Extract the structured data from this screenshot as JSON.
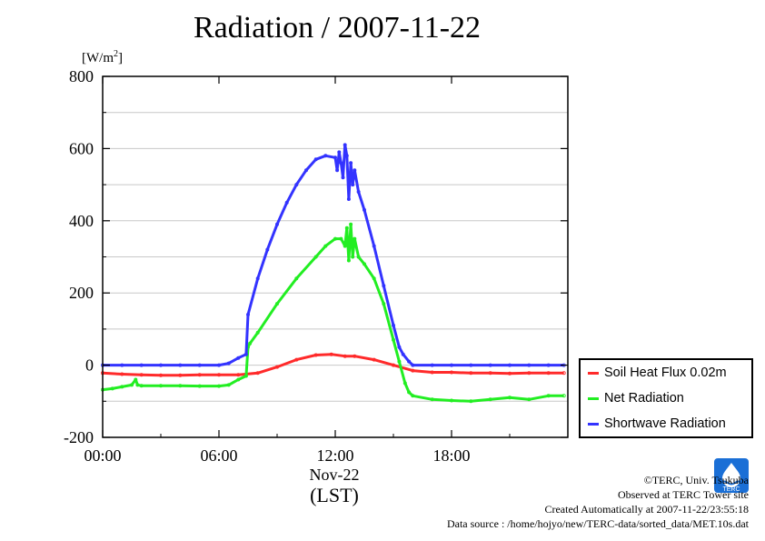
{
  "title": "Radiation / 2007-11-22",
  "y_unit": "[W/m",
  "y_unit_sup": "2",
  "y_unit_close": "]",
  "date_label": "Nov-22",
  "tz_label": "(LST)",
  "footer": {
    "copyright": "©TERC, Univ. Tsukuba",
    "observed": "Observed at TERC Tower site",
    "created": "Created Automatically at 2007-11-22/23:55:18",
    "source": "Data source : /home/hojyo/new/TERC-data/sorted_data/MET.10s.dat"
  },
  "logo_text": "TERC",
  "chart_data": {
    "type": "line",
    "title": "Radiation / 2007-11-22",
    "ylabel": "[W/m2]",
    "xlabel": "Nov-22 (LST)",
    "xlim": [
      0,
      24
    ],
    "ylim": [
      -200,
      800
    ],
    "yticks": [
      -200,
      0,
      200,
      400,
      600,
      800
    ],
    "ytick_labels": [
      "-200",
      "0",
      "200",
      "400",
      "600",
      "800"
    ],
    "xticks": [
      0,
      6,
      12,
      18
    ],
    "xtick_labels": [
      "00:00",
      "06:00",
      "12:00",
      "18:00"
    ],
    "grid": true,
    "legend_position": "right",
    "series": [
      {
        "name": "Soil Heat Flux 0.02m",
        "color": "#ff2a2a",
        "points": [
          [
            0,
            -22
          ],
          [
            1,
            -25
          ],
          [
            2,
            -27
          ],
          [
            3,
            -28
          ],
          [
            4,
            -28
          ],
          [
            5,
            -27
          ],
          [
            6,
            -27
          ],
          [
            7,
            -27
          ],
          [
            8,
            -22
          ],
          [
            9,
            -5
          ],
          [
            10,
            15
          ],
          [
            11,
            28
          ],
          [
            11.8,
            30
          ],
          [
            12.5,
            25
          ],
          [
            13,
            25
          ],
          [
            14,
            15
          ],
          [
            15,
            0
          ],
          [
            16,
            -15
          ],
          [
            17,
            -20
          ],
          [
            18,
            -20
          ],
          [
            19,
            -22
          ],
          [
            20,
            -22
          ],
          [
            21,
            -23
          ],
          [
            22,
            -22
          ],
          [
            23,
            -22
          ],
          [
            23.8,
            -22
          ]
        ]
      },
      {
        "name": "Net Radiation",
        "color": "#22ee22",
        "points": [
          [
            0,
            -68
          ],
          [
            0.5,
            -65
          ],
          [
            1,
            -60
          ],
          [
            1.5,
            -55
          ],
          [
            1.7,
            -40
          ],
          [
            1.8,
            -55
          ],
          [
            2,
            -57
          ],
          [
            3,
            -57
          ],
          [
            4,
            -57
          ],
          [
            5,
            -58
          ],
          [
            6,
            -58
          ],
          [
            6.5,
            -55
          ],
          [
            7,
            -40
          ],
          [
            7.4,
            -30
          ],
          [
            7.5,
            50
          ],
          [
            7.6,
            60
          ],
          [
            8,
            90
          ],
          [
            9,
            170
          ],
          [
            10,
            240
          ],
          [
            11,
            300
          ],
          [
            11.5,
            330
          ],
          [
            12,
            350
          ],
          [
            12.3,
            350
          ],
          [
            12.5,
            330
          ],
          [
            12.6,
            380
          ],
          [
            12.7,
            290
          ],
          [
            12.8,
            390
          ],
          [
            12.9,
            300
          ],
          [
            13,
            350
          ],
          [
            13.2,
            300
          ],
          [
            13.5,
            280
          ],
          [
            14,
            240
          ],
          [
            14.5,
            170
          ],
          [
            15,
            70
          ],
          [
            15.3,
            10
          ],
          [
            15.6,
            -50
          ],
          [
            15.8,
            -75
          ],
          [
            16,
            -85
          ],
          [
            17,
            -95
          ],
          [
            18,
            -98
          ],
          [
            19,
            -100
          ],
          [
            20,
            -95
          ],
          [
            21,
            -90
          ],
          [
            22,
            -95
          ],
          [
            23,
            -85
          ],
          [
            23.8,
            -85
          ]
        ]
      },
      {
        "name": "Shortwave Radiation",
        "color": "#3333ff",
        "points": [
          [
            0,
            0
          ],
          [
            1,
            0
          ],
          [
            2,
            0
          ],
          [
            3,
            0
          ],
          [
            4,
            0
          ],
          [
            5,
            0
          ],
          [
            6,
            0
          ],
          [
            6.5,
            5
          ],
          [
            7,
            20
          ],
          [
            7.4,
            30
          ],
          [
            7.5,
            140
          ],
          [
            8,
            240
          ],
          [
            8.5,
            320
          ],
          [
            9,
            390
          ],
          [
            9.5,
            450
          ],
          [
            10,
            500
          ],
          [
            10.5,
            540
          ],
          [
            11,
            570
          ],
          [
            11.5,
            580
          ],
          [
            12,
            575
          ],
          [
            12.1,
            540
          ],
          [
            12.2,
            590
          ],
          [
            12.3,
            560
          ],
          [
            12.4,
            520
          ],
          [
            12.5,
            610
          ],
          [
            12.6,
            580
          ],
          [
            12.7,
            460
          ],
          [
            12.8,
            560
          ],
          [
            12.9,
            500
          ],
          [
            13,
            540
          ],
          [
            13.2,
            480
          ],
          [
            13.5,
            430
          ],
          [
            14,
            330
          ],
          [
            14.5,
            220
          ],
          [
            15,
            110
          ],
          [
            15.3,
            50
          ],
          [
            15.5,
            30
          ],
          [
            15.8,
            10
          ],
          [
            16,
            0
          ],
          [
            17,
            0
          ],
          [
            18,
            0
          ],
          [
            19,
            0
          ],
          [
            20,
            0
          ],
          [
            21,
            0
          ],
          [
            22,
            0
          ],
          [
            23,
            0
          ],
          [
            23.8,
            0
          ]
        ]
      }
    ]
  }
}
